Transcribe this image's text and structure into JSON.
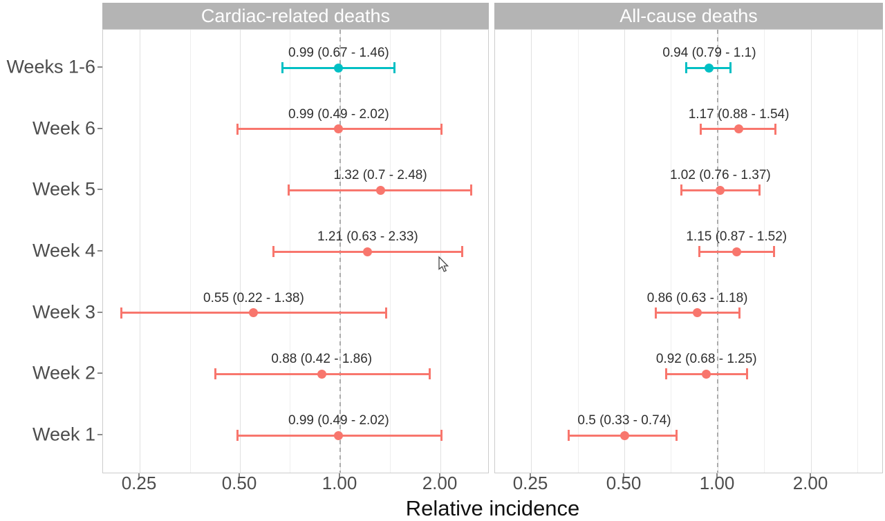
{
  "chart_data": {
    "type": "forest",
    "xlabel": "Relative incidence",
    "x_scale": "log2",
    "x_axis": {
      "tick_labels": [
        "0.25",
        "0.50",
        "1.00",
        "2.00"
      ],
      "tick_values": [
        0.25,
        0.5,
        1.0,
        2.0
      ],
      "minor_grid_values": [
        0.177,
        0.354,
        0.707,
        1.414,
        2.828
      ]
    },
    "reference_line": 1.0,
    "categories": [
      "Weeks 1-6",
      "Week 6",
      "Week 5",
      "Week 4",
      "Week 3",
      "Week 2",
      "Week 1"
    ],
    "colors": {
      "teal": "#00bfc4",
      "salmon": "#f8766d"
    },
    "panels": [
      {
        "title": "Cardiac-related deaths",
        "rows": [
          {
            "label": "0.99 (0.67 - 1.46)",
            "est": 0.99,
            "lo": 0.67,
            "hi": 1.46,
            "color": "teal"
          },
          {
            "label": "0.99 (0.49 - 2.02)",
            "est": 0.99,
            "lo": 0.49,
            "hi": 2.02,
            "color": "salmon"
          },
          {
            "label": "1.32 (0.7 - 2.48)",
            "est": 1.32,
            "lo": 0.7,
            "hi": 2.48,
            "color": "salmon"
          },
          {
            "label": "1.21 (0.63 - 2.33)",
            "est": 1.21,
            "lo": 0.63,
            "hi": 2.33,
            "color": "salmon"
          },
          {
            "label": "0.55 (0.22 - 1.38)",
            "est": 0.55,
            "lo": 0.22,
            "hi": 1.38,
            "color": "salmon"
          },
          {
            "label": "0.88 (0.42 - 1.86)",
            "est": 0.88,
            "lo": 0.42,
            "hi": 1.86,
            "color": "salmon"
          },
          {
            "label": "0.99 (0.49 - 2.02)",
            "est": 0.99,
            "lo": 0.49,
            "hi": 2.02,
            "color": "salmon"
          }
        ]
      },
      {
        "title": "All-cause deaths",
        "rows": [
          {
            "label": "0.94 (0.79 - 1.1)",
            "est": 0.94,
            "lo": 0.79,
            "hi": 1.1,
            "color": "teal"
          },
          {
            "label": "1.17 (0.88 - 1.54)",
            "est": 1.17,
            "lo": 0.88,
            "hi": 1.54,
            "color": "salmon"
          },
          {
            "label": "1.02 (0.76 - 1.37)",
            "est": 1.02,
            "lo": 0.76,
            "hi": 1.37,
            "color": "salmon"
          },
          {
            "label": "1.15 (0.87 - 1.52)",
            "est": 1.15,
            "lo": 0.87,
            "hi": 1.52,
            "color": "salmon"
          },
          {
            "label": "0.86 (0.63 - 1.18)",
            "est": 0.86,
            "lo": 0.63,
            "hi": 1.18,
            "color": "salmon"
          },
          {
            "label": "0.92 (0.68 - 1.25)",
            "est": 0.92,
            "lo": 0.68,
            "hi": 1.25,
            "color": "salmon"
          },
          {
            "label": "0.5 (0.33 - 0.74)",
            "est": 0.5,
            "lo": 0.33,
            "hi": 0.74,
            "color": "salmon"
          }
        ]
      }
    ]
  }
}
